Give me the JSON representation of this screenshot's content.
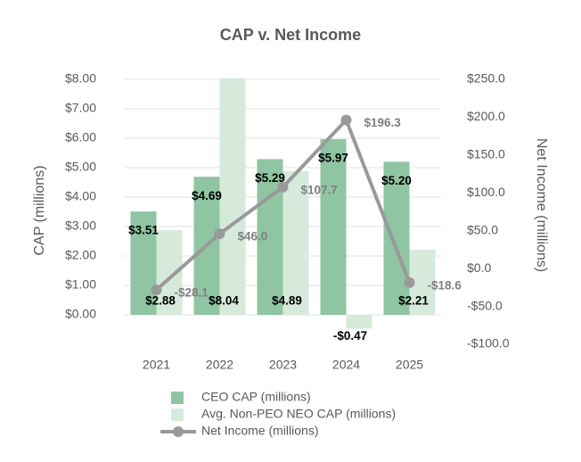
{
  "chart_data": {
    "type": "bar-line",
    "title": "CAP v. Net Income",
    "categories": [
      "2021",
      "2022",
      "2023",
      "2024",
      "2025"
    ],
    "ylabel": "CAP (millions)",
    "y2label": "Net Income (millions)",
    "ylim": [
      -1,
      8
    ],
    "yticks": [
      {
        "value": 0,
        "label": "$0.00"
      },
      {
        "value": 1,
        "label": "$1.00"
      },
      {
        "value": 2,
        "label": "$2.00"
      },
      {
        "value": 3,
        "label": "$3.00"
      },
      {
        "value": 4,
        "label": "$4.00"
      },
      {
        "value": 5,
        "label": "$5.00"
      },
      {
        "value": 6,
        "label": "$6.00"
      },
      {
        "value": 7,
        "label": "$7.00"
      },
      {
        "value": 8,
        "label": "$8.00"
      }
    ],
    "y2lim": [
      -100,
      250
    ],
    "y2ticks": [
      {
        "value": -100,
        "label": "-$100.0"
      },
      {
        "value": -50,
        "label": "-$50.0"
      },
      {
        "value": 0,
        "label": "$0.0"
      },
      {
        "value": 50,
        "label": "$50.0"
      },
      {
        "value": 100,
        "label": "$100.0"
      },
      {
        "value": 150,
        "label": "$150.0"
      },
      {
        "value": 200,
        "label": "$200.0"
      },
      {
        "value": 250,
        "label": "$250.0"
      }
    ],
    "grid": true,
    "series": [
      {
        "name": "CEO CAP (millions)",
        "kind": "bar",
        "color": "#8fc5a2",
        "values": [
          3.51,
          4.69,
          5.29,
          5.97,
          5.2
        ],
        "value_labels": [
          "$3.51",
          "$4.69",
          "$5.29",
          "$5.97",
          "$5.20"
        ]
      },
      {
        "name": "Avg. Non-PEO NEO CAP (millions)",
        "kind": "bar",
        "color": "#d6eadc",
        "values": [
          2.88,
          8.04,
          4.89,
          -0.47,
          2.21
        ],
        "value_labels": [
          "$2.88",
          "$8.04",
          "$4.89",
          "-$0.47",
          "$2.21"
        ]
      },
      {
        "name": "Net Income (millions)",
        "kind": "line",
        "axis": "y2",
        "color": "#999999",
        "values": [
          -28.1,
          46.0,
          107.7,
          196.3,
          -18.6
        ],
        "value_labels": [
          "-$28.1",
          "$46.0",
          "$107.7",
          "$196.3",
          "-$18.6"
        ]
      }
    ]
  }
}
